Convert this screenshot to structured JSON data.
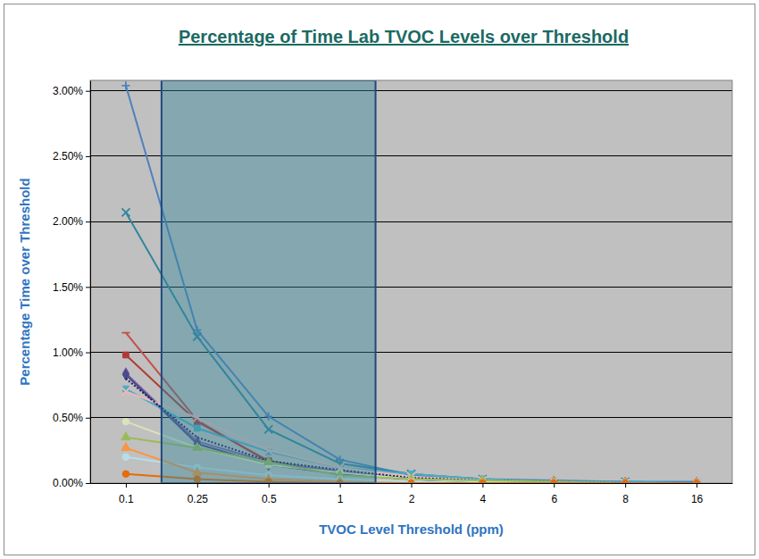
{
  "chart_data": {
    "type": "line",
    "title": "Percentage of Time Lab TVOC Levels over Threshold",
    "x_label": "TVOC Level Threshold (ppm)",
    "y_label": "Percentage Time over Threshold",
    "categories": [
      "0.1",
      "0.25",
      "0.5",
      "1",
      "2",
      "4",
      "6",
      "8",
      "16"
    ],
    "ylim": [
      0,
      3.08
    ],
    "yticks": [
      {
        "value": 0,
        "label": "0.00%"
      },
      {
        "value": 0.5,
        "label": "0.50%"
      },
      {
        "value": 1,
        "label": "1.00%"
      },
      {
        "value": 1.5,
        "label": "1.50%"
      },
      {
        "value": 2,
        "label": "2.00%"
      },
      {
        "value": 2.5,
        "label": "2.50%"
      },
      {
        "value": 3,
        "label": "3.00%"
      }
    ],
    "grid": true,
    "series": [
      {
        "color": "#4f81bd",
        "marker": "plus",
        "line_style": "solid",
        "values": [
          3.04,
          1.17,
          0.51,
          0.18,
          0.06,
          0.03,
          0.02,
          0.01,
          0.01
        ]
      },
      {
        "color": "#31859c",
        "marker": "x",
        "line_style": "solid",
        "values": [
          2.07,
          1.12,
          0.41,
          0.15,
          0.07,
          0.03,
          0.01,
          0.01,
          0.0
        ]
      },
      {
        "color": "#c0504d",
        "marker": "dash",
        "line_style": "solid",
        "values": [
          1.15,
          0.48,
          0.16,
          0.08,
          0.03,
          0.01,
          0.01,
          0.0,
          0.0
        ]
      },
      {
        "color": "#b03a37",
        "marker": "square",
        "line_style": "solid",
        "values": [
          0.98,
          0.47,
          0.17,
          0.07,
          0.03,
          0.01,
          0.0,
          0.0,
          0.0
        ]
      },
      {
        "color": "#8064a2",
        "marker": "diamond",
        "line_style": "solid",
        "values": [
          0.84,
          0.32,
          0.16,
          0.09,
          0.03,
          0.01,
          0.01,
          0.0,
          0.0
        ]
      },
      {
        "color": "#4a4a8c",
        "marker": "diamond",
        "line_style": "solid",
        "values": [
          0.83,
          0.3,
          0.14,
          0.07,
          0.03,
          0.01,
          0.0,
          0.0,
          0.0
        ]
      },
      {
        "color": "#4bacc6",
        "marker": "square",
        "line_style": "solid",
        "values": [
          0.72,
          0.42,
          0.24,
          0.12,
          0.07,
          0.03,
          0.01,
          0.01,
          0.0
        ]
      },
      {
        "color": "#e6b9b8",
        "marker": "x",
        "line_style": "solid",
        "values": [
          0.7,
          0.5,
          0.25,
          0.12,
          0.05,
          0.02,
          0.01,
          0.0,
          0.0
        ]
      },
      {
        "color": "#1f1f5f",
        "marker": "none",
        "line_style": "dotted",
        "values": [
          0.8,
          0.35,
          0.17,
          0.1,
          0.04,
          0.02,
          0.01,
          0.0,
          0.0
        ]
      },
      {
        "color": "#d7e4bd",
        "marker": "circle",
        "line_style": "solid",
        "values": [
          0.47,
          0.27,
          0.14,
          0.08,
          0.03,
          0.01,
          0.0,
          0.0,
          0.0
        ]
      },
      {
        "color": "#9bbb59",
        "marker": "triangle",
        "line_style": "solid",
        "values": [
          0.35,
          0.27,
          0.16,
          0.06,
          0.03,
          0.02,
          0.01,
          0.0,
          0.0
        ]
      },
      {
        "color": "#b7dee8",
        "marker": "circle",
        "line_style": "solid",
        "values": [
          0.2,
          0.12,
          0.06,
          0.03,
          0.01,
          0.0,
          0.0,
          0.0,
          0.0
        ]
      },
      {
        "color": "#f79646",
        "marker": "triangle",
        "line_style": "solid",
        "values": [
          0.27,
          0.08,
          0.03,
          0.01,
          0.0,
          0.0,
          0.0,
          0.0,
          0.0
        ]
      },
      {
        "color": "#e46c0a",
        "marker": "circle",
        "line_style": "solid",
        "values": [
          0.07,
          0.03,
          0.01,
          0.0,
          0.0,
          0.0,
          0.0,
          0.0,
          0.0
        ]
      }
    ]
  }
}
